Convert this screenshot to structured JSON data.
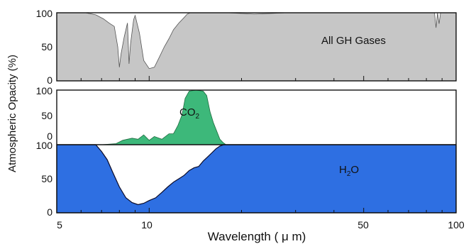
{
  "chart_data": [
    {
      "type": "area",
      "panel": "top",
      "annotation": "All GH Gases",
      "x_scale": "log",
      "xlim": [
        5,
        100
      ],
      "ylim": [
        0,
        100
      ],
      "y_ticks": [
        0,
        50,
        100
      ],
      "colors": {
        "fill": "#c6c6c6",
        "gap": "#ffffff"
      },
      "series": [
        {
          "x": [
            5,
            6.2,
            6.7,
            7.1,
            7.4,
            7.7,
            7.9,
            8.0,
            8.1,
            8.3,
            8.5,
            8.6,
            8.7,
            8.9,
            9.0,
            9.3,
            9.6,
            10.0,
            10.4,
            10.8,
            11.2,
            11.6,
            12.0,
            12.5,
            13.0,
            13.3,
            13.6,
            14.2,
            16.0,
            18.0,
            22.0,
            28.0,
            40.0,
            60.0,
            85.0,
            86.0,
            87.0,
            88.0,
            89.0,
            100
          ],
          "values": [
            100,
            100,
            97,
            91,
            85,
            80,
            50,
            20,
            40,
            65,
            85,
            25,
            55,
            90,
            96,
            70,
            30,
            18,
            20,
            35,
            50,
            62,
            75,
            85,
            93,
            98,
            100,
            100,
            100,
            100,
            98,
            100,
            100,
            100,
            100,
            78,
            100,
            84,
            100,
            100
          ]
        }
      ]
    },
    {
      "type": "area",
      "panel": "middle",
      "annotation": "CO2",
      "x_scale": "log",
      "xlim": [
        5,
        100
      ],
      "ylim": [
        0,
        100
      ],
      "y_ticks": [
        0,
        50,
        100
      ],
      "colors": {
        "fill": "#3db87a",
        "stroke": "#1e6b3f"
      },
      "series": [
        {
          "x": [
            5,
            7.0,
            7.8,
            8.2,
            8.8,
            9.2,
            9.6,
            10.0,
            10.4,
            11.0,
            11.6,
            12.0,
            12.4,
            12.8,
            13.1,
            13.5,
            14.2,
            15.0,
            15.4,
            15.8,
            16.2,
            16.6,
            17.0,
            17.4,
            17.8,
            100
          ],
          "values": [
            0,
            0,
            2,
            8,
            12,
            10,
            18,
            8,
            15,
            10,
            20,
            20,
            35,
            55,
            85,
            98,
            100,
            98,
            90,
            60,
            40,
            25,
            10,
            4,
            0,
            0
          ]
        }
      ]
    },
    {
      "type": "area",
      "panel": "bottom",
      "annotation": "H2O",
      "x_scale": "log",
      "xlim": [
        5,
        100
      ],
      "ylim": [
        0,
        100
      ],
      "y_ticks": [
        0,
        50,
        100
      ],
      "xlabel": "Wavelength (μm)",
      "x_ticks": [
        5,
        10,
        50,
        100
      ],
      "colors": {
        "fill": "#2e6fe2",
        "stroke": "#0a0a28"
      },
      "series": [
        {
          "x": [
            5,
            6.7,
            7.0,
            7.3,
            7.6,
            8.0,
            8.4,
            8.8,
            9.2,
            9.6,
            10.0,
            10.5,
            11.0,
            11.5,
            12.0,
            12.5,
            13.0,
            13.5,
            14.0,
            14.5,
            15.0,
            15.5,
            16.0,
            16.5,
            17.0,
            17.5,
            100
          ],
          "values": [
            100,
            100,
            90,
            78,
            60,
            38,
            22,
            15,
            12,
            14,
            18,
            22,
            30,
            38,
            45,
            50,
            55,
            62,
            66,
            68,
            76,
            82,
            88,
            94,
            98,
            100,
            100
          ]
        }
      ]
    }
  ],
  "labels": {
    "ylabel": "Atmospheric Opacity (%)",
    "xlabel": "Wavelength ( μ m)",
    "top_annotation": "All GH Gases",
    "co2_main": "CO",
    "co2_sub": "2",
    "h2o_main": "H",
    "h2o_sub": "2",
    "h2o_tail": "O",
    "top_ticks": [
      "100",
      "50",
      "0"
    ],
    "mid_ticks": [
      "100",
      "50",
      "0"
    ],
    "bot_ticks": [
      "100",
      "50",
      "0"
    ],
    "x_ticks": [
      "5",
      "10",
      "50",
      "100"
    ]
  }
}
